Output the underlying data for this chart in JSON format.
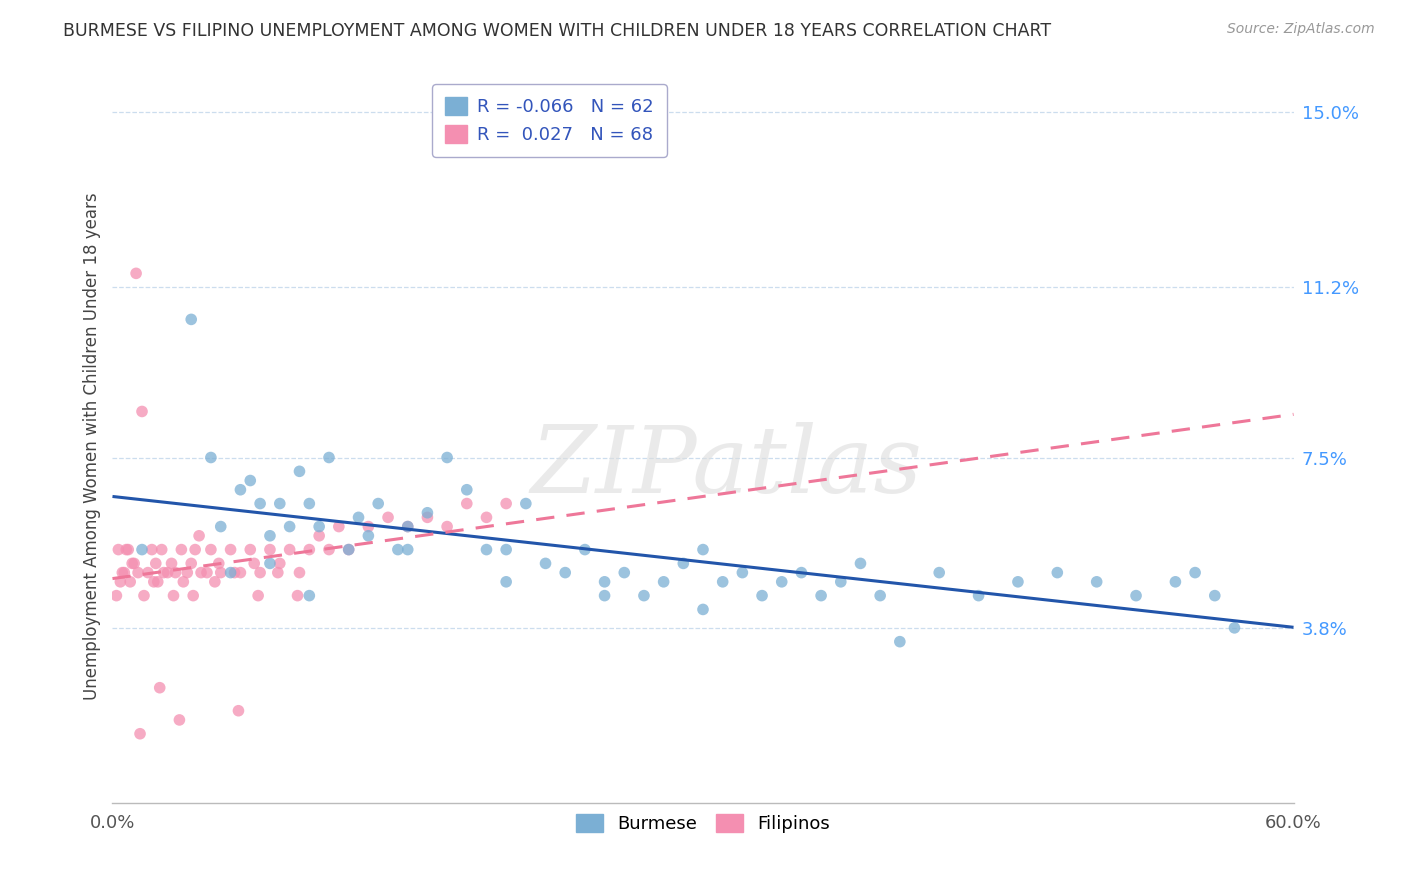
{
  "title": "BURMESE VS FILIPINO UNEMPLOYMENT AMONG WOMEN WITH CHILDREN UNDER 18 YEARS CORRELATION CHART",
  "source": "Source: ZipAtlas.com",
  "ylabel_label": "Unemployment Among Women with Children Under 18 years",
  "right_ytick_values": [
    3.8,
    7.5,
    11.2,
    15.0
  ],
  "right_ytick_labels": [
    "3.8%",
    "7.5%",
    "11.2%",
    "15.0%"
  ],
  "xlim": [
    0.0,
    60.0
  ],
  "ylim": [
    0.0,
    15.5
  ],
  "burmese_R": -0.066,
  "burmese_N": 62,
  "filipino_R": 0.027,
  "filipino_N": 68,
  "burmese_color": "#7BAFD4",
  "filipino_color": "#F48FB1",
  "burmese_line_color": "#2255AA",
  "filipino_line_color": "#EE7799",
  "watermark": "ZIPatlas",
  "burmese_x": [
    1.5,
    4.0,
    5.0,
    5.5,
    6.5,
    7.0,
    7.5,
    8.0,
    8.5,
    9.0,
    9.5,
    10.0,
    10.5,
    11.0,
    12.0,
    12.5,
    13.0,
    13.5,
    14.5,
    15.0,
    16.0,
    17.0,
    18.0,
    19.0,
    20.0,
    21.0,
    22.0,
    23.0,
    24.0,
    25.0,
    26.0,
    27.0,
    28.0,
    29.0,
    30.0,
    31.0,
    32.0,
    33.0,
    34.0,
    35.0,
    36.0,
    37.0,
    38.0,
    39.0,
    40.0,
    42.0,
    44.0,
    46.0,
    48.0,
    50.0,
    52.0,
    54.0,
    55.0,
    56.0,
    57.0,
    30.0,
    25.0,
    20.0,
    15.0,
    10.0,
    8.0,
    6.0
  ],
  "burmese_y": [
    5.5,
    10.5,
    7.5,
    6.0,
    6.8,
    7.0,
    6.5,
    5.8,
    6.5,
    6.0,
    7.2,
    6.5,
    6.0,
    7.5,
    5.5,
    6.2,
    5.8,
    6.5,
    5.5,
    6.0,
    6.3,
    7.5,
    6.8,
    5.5,
    5.5,
    6.5,
    5.2,
    5.0,
    5.5,
    4.8,
    5.0,
    4.5,
    4.8,
    5.2,
    5.5,
    4.8,
    5.0,
    4.5,
    4.8,
    5.0,
    4.5,
    4.8,
    5.2,
    4.5,
    3.5,
    5.0,
    4.5,
    4.8,
    5.0,
    4.8,
    4.5,
    4.8,
    5.0,
    4.5,
    3.8,
    4.2,
    4.5,
    4.8,
    5.5,
    4.5,
    5.2,
    5.0
  ],
  "filipino_x": [
    0.3,
    0.5,
    0.8,
    1.0,
    1.2,
    1.5,
    1.8,
    2.0,
    2.2,
    2.5,
    2.8,
    3.0,
    3.2,
    3.5,
    3.8,
    4.0,
    4.2,
    4.5,
    5.0,
    5.5,
    6.0,
    6.5,
    7.0,
    7.5,
    8.0,
    8.5,
    9.0,
    9.5,
    10.0,
    10.5,
    11.0,
    11.5,
    12.0,
    13.0,
    14.0,
    15.0,
    16.0,
    17.0,
    18.0,
    19.0,
    20.0,
    0.2,
    0.4,
    0.6,
    0.9,
    1.1,
    1.6,
    2.1,
    2.6,
    3.1,
    3.6,
    4.1,
    5.2,
    6.2,
    7.2,
    2.3,
    1.3,
    0.7,
    1.4,
    2.4,
    3.4,
    4.4,
    5.4,
    6.4,
    7.4,
    8.4,
    9.4,
    4.8
  ],
  "filipino_y": [
    5.5,
    5.0,
    5.5,
    5.2,
    11.5,
    8.5,
    5.0,
    5.5,
    5.2,
    5.5,
    5.0,
    5.2,
    5.0,
    5.5,
    5.0,
    5.2,
    5.5,
    5.0,
    5.5,
    5.0,
    5.5,
    5.0,
    5.5,
    5.0,
    5.5,
    5.2,
    5.5,
    5.0,
    5.5,
    5.8,
    5.5,
    6.0,
    5.5,
    6.0,
    6.2,
    6.0,
    6.2,
    6.0,
    6.5,
    6.2,
    6.5,
    4.5,
    4.8,
    5.0,
    4.8,
    5.2,
    4.5,
    4.8,
    5.0,
    4.5,
    4.8,
    4.5,
    4.8,
    5.0,
    5.2,
    4.8,
    5.0,
    5.5,
    1.5,
    2.5,
    1.8,
    5.8,
    5.2,
    2.0,
    4.5,
    5.0,
    4.5,
    5.0
  ]
}
